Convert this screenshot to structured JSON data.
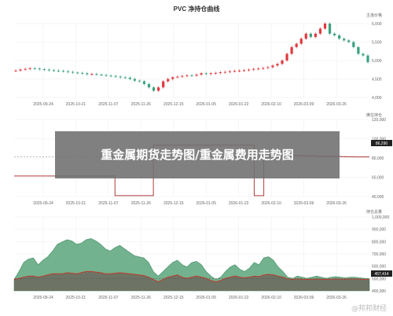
{
  "banner": {
    "text": "重金属期货走势图/重金属费用走势图"
  },
  "watermark": {
    "text": "@邦邦财经"
  },
  "colors": {
    "up": "#e0393e",
    "down": "#3aa17e",
    "area_fill": "#5aa57b",
    "series_red": "#c0392b",
    "step_line": "#b03a3a",
    "last_badge": "#222222"
  },
  "chart_data": [
    {
      "type": "candlestick",
      "title": "PVC 净持仓曲线",
      "ylabel": "主连价格",
      "ylim": [
        4000,
        6200
      ],
      "yticks": [
        "6,000",
        "5,500",
        "5,000",
        "4,500",
        "4,000"
      ],
      "xticks": [
        "2025-09-24",
        "2025-10-21",
        "2025-11-07",
        "2025-11-26",
        "2025-12-15",
        "2026-01-05",
        "2026-01-22",
        "2026-02-10",
        "2026-03-09",
        "2026-03-26"
      ],
      "close": [
        4800,
        4830,
        4850,
        4870,
        4860,
        4840,
        4830,
        4810,
        4800,
        4790,
        4780,
        4760,
        4740,
        4730,
        4720,
        4690,
        4700,
        4680,
        4670,
        4650,
        4640,
        4620,
        4600,
        4590,
        4550,
        4500,
        4480,
        4400,
        4300,
        4200,
        4300,
        4480,
        4550,
        4600,
        4620,
        4640,
        4660,
        4650,
        4680,
        4720,
        4700,
        4720,
        4730,
        4750,
        4760,
        4780,
        4790,
        4800,
        4810,
        4830,
        4850,
        4860,
        4880,
        4900,
        4950,
        5000,
        5100,
        5300,
        5500,
        5600,
        5750,
        5900,
        5800,
        5900,
        6050,
        6200,
        5900,
        5850,
        5750,
        5700,
        5650,
        5500,
        5300,
        5250,
        5050
      ]
    },
    {
      "type": "line",
      "ylabel": "席位持仓",
      "ylim": [
        40000,
        130000
      ],
      "yticks": [
        "120,000",
        "100,000",
        "80,000",
        "60,000",
        "40,000"
      ],
      "xticks": [
        "2025-09-24",
        "2025-10-21",
        "2025-11-07",
        "2025-11-26",
        "2025-12-15",
        "2026-01-05",
        "2026-01-22",
        "2026-02-10",
        "2026-03-09",
        "2026-03-26"
      ],
      "last_value": "86,290",
      "values": [
        64000,
        64000,
        64000,
        64000,
        64000,
        64000,
        64000,
        64000,
        64000,
        64000,
        64000,
        64000,
        64000,
        64000,
        64000,
        64000,
        64000,
        64000,
        64000,
        64000,
        64000,
        41000,
        41000,
        41000,
        41000,
        41000,
        41000,
        41000,
        41000,
        100000,
        100000,
        100000,
        100000,
        100000,
        100000,
        100000,
        100000,
        100000,
        100000,
        100000,
        100000,
        100000,
        100000,
        100000,
        100000,
        100000,
        100000,
        100000,
        100000,
        100000,
        41000,
        41000,
        88000,
        88000,
        88000,
        88000,
        88000,
        88000,
        88000,
        88000,
        87500,
        87500,
        87500,
        87000,
        87000,
        87000,
        86800,
        86800,
        86600,
        86500,
        86400,
        86300,
        86300,
        86290,
        86290
      ]
    },
    {
      "type": "area",
      "ylabel": "持仓总量",
      "ylim": [
        350000,
        1000000
      ],
      "yticks": [
        "1,000,000",
        "900,000",
        "800,000",
        "700,000",
        "600,000",
        "500,000",
        "400,000"
      ],
      "xticks": [
        "2025-09-24",
        "2025-10-21",
        "2025-11-07",
        "2025-11-26",
        "2025-12-15",
        "2026-01-05",
        "2026-01-22",
        "2026-02-10",
        "2026-03-09",
        "2026-03-26"
      ],
      "last_value": "457,414",
      "series": [
        {
          "values": [
            450000,
            520000,
            600000,
            630000,
            640000,
            580000,
            620000,
            650000,
            700000,
            760000,
            780000,
            800000,
            790000,
            760000,
            770000,
            800000,
            810000,
            790000,
            760000,
            720000,
            700000,
            730000,
            750000,
            720000,
            690000,
            660000,
            650000,
            640000,
            600000,
            520000,
            480000,
            520000,
            560000,
            600000,
            620000,
            580000,
            560000,
            600000,
            610000,
            580000,
            520000,
            480000,
            450000,
            470000,
            520000,
            560000,
            580000,
            540000,
            520000,
            550000,
            600000,
            580000,
            640000,
            650000,
            620000,
            560000,
            520000,
            470000,
            460000,
            480000,
            470000,
            460000,
            470000,
            480000,
            470000,
            460000,
            470000,
            475000,
            470000,
            465000,
            470000,
            470000,
            465000,
            460000,
            457000
          ]
        },
        {
          "values": [
            450000,
            460000,
            470000,
            480000,
            480000,
            470000,
            480000,
            490000,
            500000,
            500000,
            500000,
            510000,
            505000,
            500000,
            510000,
            520000,
            520000,
            515000,
            510000,
            500000,
            500000,
            505000,
            510000,
            505000,
            500000,
            495000,
            490000,
            485000,
            470000,
            450000,
            430000,
            450000,
            470000,
            480000,
            490000,
            470000,
            460000,
            470000,
            480000,
            470000,
            460000,
            440000,
            430000,
            440000,
            460000,
            470000,
            480000,
            470000,
            465000,
            470000,
            480000,
            475000,
            490000,
            495000,
            490000,
            480000,
            470000,
            455000,
            450000,
            455000,
            452000,
            450000,
            452000,
            455000,
            452000,
            450000,
            452000,
            455000,
            453000,
            452000,
            455000,
            455000,
            452000,
            450000,
            449000
          ]
        }
      ]
    }
  ]
}
